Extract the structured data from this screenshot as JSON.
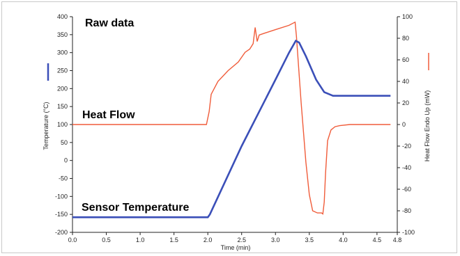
{
  "chart_data": {
    "type": "line",
    "title": "",
    "xlabel": "Time (min)",
    "ylabel_left": "Temperature (°C)",
    "ylabel_right": "Heat Flow Endo Up (mW)",
    "xlim": [
      0.0,
      4.8
    ],
    "ylim_left": [
      -200,
      400
    ],
    "ylim_right": [
      -100,
      100
    ],
    "x_ticks": [
      "0.0",
      "0.5",
      "1.0",
      "1.5",
      "2.0",
      "2.5",
      "3.0",
      "3.5",
      "4.0",
      "4.5",
      "4.8"
    ],
    "y_left_ticks": [
      "400",
      "350",
      "300",
      "250",
      "200",
      "150",
      "100",
      "50",
      "0",
      "-50",
      "-100",
      "-150",
      "-200"
    ],
    "y_right_ticks": [
      "100",
      "80",
      "60",
      "40",
      "20",
      "0",
      "-20",
      "-40",
      "-60",
      "-80",
      "-100"
    ],
    "grid": false,
    "annotations": [
      "Raw data",
      "Heat Flow",
      "Sensor Temperature"
    ],
    "series": [
      {
        "axis": "left",
        "color": "#3b4fb8",
        "x": [
          0.0,
          1.0,
          2.0,
          2.03,
          2.5,
          3.0,
          3.2,
          3.3,
          3.35,
          3.45,
          3.6,
          3.72,
          3.85,
          4.0,
          4.7
        ],
        "y": [
          -158,
          -158,
          -158,
          -150,
          40,
          225,
          300,
          333,
          328,
          290,
          225,
          190,
          180,
          180,
          180
        ]
      },
      {
        "axis": "right",
        "color": "#f05c3a",
        "x": [
          0.0,
          1.0,
          1.98,
          2.02,
          2.05,
          2.15,
          2.3,
          2.45,
          2.55,
          2.62,
          2.67,
          2.7,
          2.73,
          2.76,
          2.85,
          3.0,
          3.2,
          3.29,
          3.31,
          3.38,
          3.45,
          3.5,
          3.55,
          3.62,
          3.68,
          3.7,
          3.72,
          3.74,
          3.77,
          3.82,
          3.88,
          3.95,
          4.1,
          4.7
        ],
        "y": [
          0,
          0,
          0,
          12,
          28,
          40,
          50,
          58,
          67,
          70,
          75,
          90,
          77,
          83,
          85,
          88,
          92,
          95,
          82,
          20,
          -35,
          -65,
          -80,
          -82,
          -82,
          -83,
          -72,
          -45,
          -15,
          -5,
          -2,
          -1,
          0,
          0
        ]
      }
    ]
  }
}
